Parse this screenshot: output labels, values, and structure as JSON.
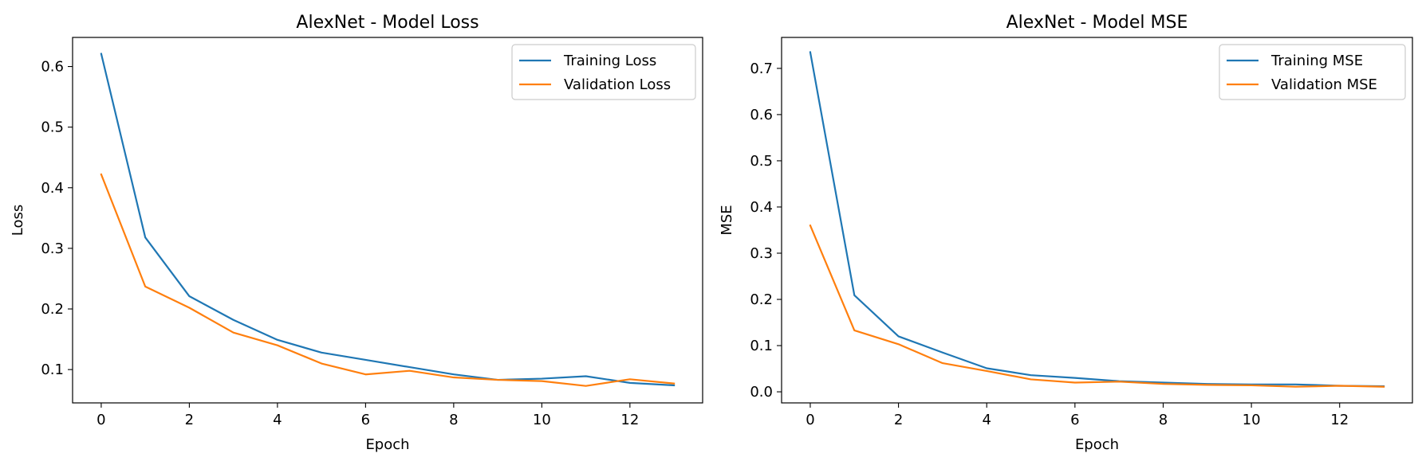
{
  "chart_data": [
    {
      "type": "line",
      "title": "AlexNet - Model Loss",
      "xlabel": "Epoch",
      "ylabel": "Loss",
      "xlim": [
        -0.65,
        13.65
      ],
      "ylim": [
        0.045,
        0.648
      ],
      "xticks": [
        0,
        2,
        4,
        6,
        8,
        10,
        12
      ],
      "yticks": [
        0.1,
        0.2,
        0.3,
        0.4,
        0.5,
        0.6
      ],
      "ytick_labels": [
        "0.1",
        "0.2",
        "0.3",
        "0.4",
        "0.5",
        "0.6"
      ],
      "grid": false,
      "legend_position": "top-right",
      "x": [
        0,
        1,
        2,
        3,
        4,
        5,
        6,
        7,
        8,
        9,
        10,
        11,
        12,
        13
      ],
      "series": [
        {
          "name": "Training Loss",
          "color": "#1f77b4",
          "values": [
            0.621,
            0.318,
            0.221,
            0.182,
            0.149,
            0.128,
            0.116,
            0.104,
            0.092,
            0.083,
            0.085,
            0.089,
            0.078,
            0.074
          ]
        },
        {
          "name": "Validation Loss",
          "color": "#ff7f0e",
          "values": [
            0.422,
            0.237,
            0.202,
            0.161,
            0.14,
            0.11,
            0.092,
            0.098,
            0.087,
            0.083,
            0.081,
            0.073,
            0.084,
            0.077
          ]
        }
      ]
    },
    {
      "type": "line",
      "title": "AlexNet - Model MSE",
      "xlabel": "Epoch",
      "ylabel": "MSE",
      "xlim": [
        -0.65,
        13.65
      ],
      "ylim": [
        -0.024,
        0.767
      ],
      "xticks": [
        0,
        2,
        4,
        6,
        8,
        10,
        12
      ],
      "yticks": [
        0.0,
        0.1,
        0.2,
        0.3,
        0.4,
        0.5,
        0.6,
        0.7
      ],
      "ytick_labels": [
        "0.0",
        "0.1",
        "0.2",
        "0.3",
        "0.4",
        "0.5",
        "0.6",
        "0.7"
      ],
      "grid": false,
      "legend_position": "top-right",
      "x": [
        0,
        1,
        2,
        3,
        4,
        5,
        6,
        7,
        8,
        9,
        10,
        11,
        12,
        13
      ],
      "series": [
        {
          "name": "Training MSE",
          "color": "#1f77b4",
          "values": [
            0.735,
            0.209,
            0.12,
            0.085,
            0.051,
            0.036,
            0.03,
            0.023,
            0.02,
            0.017,
            0.016,
            0.016,
            0.013,
            0.012
          ]
        },
        {
          "name": "Validation MSE",
          "color": "#ff7f0e",
          "values": [
            0.36,
            0.133,
            0.103,
            0.062,
            0.045,
            0.027,
            0.02,
            0.022,
            0.017,
            0.015,
            0.014,
            0.011,
            0.013,
            0.011
          ]
        }
      ]
    }
  ]
}
